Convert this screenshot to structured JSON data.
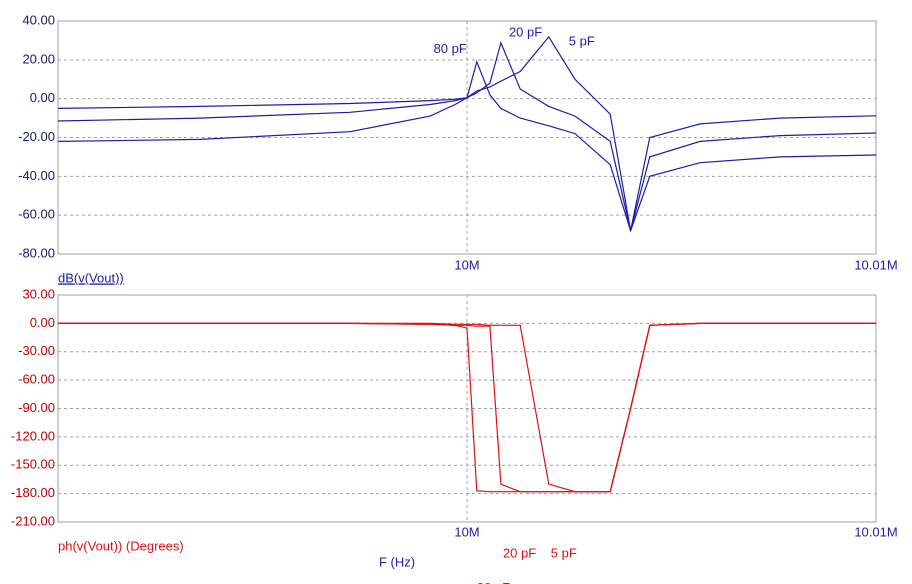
{
  "chart_data": [
    {
      "type": "line",
      "ylabel": "dB(v(Vout))",
      "color": "#1c1ca8",
      "grid": true,
      "x": [
        9990000,
        9993470,
        9997140,
        9999100,
        9999710,
        10000000,
        10000240,
        10000560,
        10000830,
        10001300,
        10002000,
        10002640,
        10003500,
        10004000,
        10004470,
        10005700,
        10007650,
        10010000
      ],
      "xlim": [
        9990000,
        10010000
      ],
      "xticks": [
        {
          "value": 10000000,
          "label": "10M"
        },
        {
          "value": 10010000,
          "label": "10.01M"
        }
      ],
      "ylim": [
        -80,
        40
      ],
      "yticks": [
        {
          "value": 40,
          "label": "40.00"
        },
        {
          "value": 20,
          "label": "20.00"
        },
        {
          "value": 0,
          "label": "0.00"
        },
        {
          "value": -20,
          "label": "-20.00"
        },
        {
          "value": -40,
          "label": "-40.00"
        },
        {
          "value": -60,
          "label": "-60.00"
        },
        {
          "value": -80,
          "label": "-80.00"
        }
      ],
      "series": [
        {
          "name": "80 pF",
          "values": [
            -5,
            -4,
            -2.5,
            -1,
            -0.3,
            0.5,
            19,
            2,
            -5,
            -10,
            -14,
            -18,
            -34,
            -68,
            -40,
            -33,
            -30,
            -29
          ]
        },
        {
          "name": "20 pF",
          "values": [
            -11.5,
            -10,
            -7,
            -3,
            -1,
            0.5,
            3,
            8,
            28.7,
            5,
            -4,
            -9,
            -22,
            -68,
            -30,
            -22,
            -19,
            -17.7
          ]
        },
        {
          "name": "5 pF",
          "values": [
            -22,
            -21,
            -17,
            -9,
            -3,
            0.5,
            4,
            6,
            9,
            14,
            31.8,
            10,
            -8,
            -68,
            -20,
            -13,
            -10,
            -8.8
          ]
        }
      ]
    },
    {
      "type": "line",
      "ylabel": "ph(v(Vout)) (Degrees)",
      "xlabel": "F (Hz)",
      "color": "#e01010",
      "grid": true,
      "x": [
        9990000,
        9993470,
        9997140,
        9999100,
        9999710,
        10000000,
        10000240,
        10000560,
        10000830,
        10001300,
        10002000,
        10002640,
        10003500,
        10004000,
        10004470,
        10005700,
        10007650,
        10010000
      ],
      "xlim": [
        9990000,
        10010000
      ],
      "xticks": [
        {
          "value": 10000000,
          "label": "10M"
        },
        {
          "value": 10010000,
          "label": "10.01M"
        }
      ],
      "ylim": [
        -210,
        30
      ],
      "yticks": [
        {
          "value": 30,
          "label": "30.00"
        },
        {
          "value": 0,
          "label": "0.00"
        },
        {
          "value": -30,
          "label": "-30.00"
        },
        {
          "value": -60,
          "label": "-60.00"
        },
        {
          "value": -90,
          "label": "-90.00"
        },
        {
          "value": -120,
          "label": "-120.00"
        },
        {
          "value": -150,
          "label": "-150.00"
        },
        {
          "value": -180,
          "label": "-180.00"
        },
        {
          "value": -210,
          "label": "-210.00"
        }
      ],
      "series": [
        {
          "name": "80 pF",
          "values": [
            0,
            0,
            0,
            -1,
            -2,
            -5,
            -177,
            -178,
            -178,
            -178,
            -178,
            -178,
            -178,
            -90,
            -2,
            0,
            0,
            0
          ]
        },
        {
          "name": "20 pF",
          "values": [
            0,
            0,
            0,
            -1,
            -2,
            -2,
            -3,
            -3,
            -170,
            -178,
            -178,
            -178,
            -178,
            -90,
            -2,
            0,
            0,
            0
          ]
        },
        {
          "name": "5 pF",
          "values": [
            0,
            0,
            0,
            0,
            -1,
            -1,
            -1,
            -2,
            -2,
            -2,
            -170,
            -178,
            -178,
            -90,
            -2,
            0,
            0,
            0
          ]
        }
      ]
    }
  ]
}
